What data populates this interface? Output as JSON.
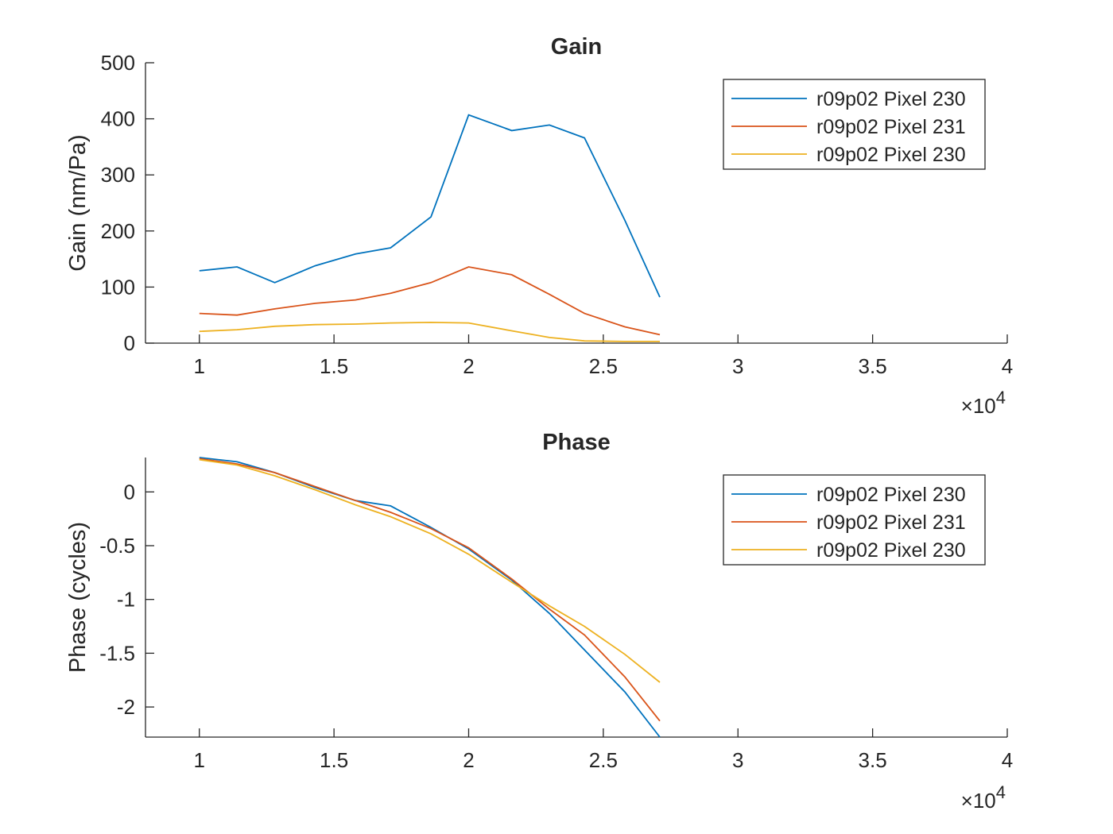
{
  "chart_data": [
    {
      "type": "line",
      "title": "Gain",
      "xlabel": "",
      "ylabel": "Gain (nm/Pa)",
      "xlim": [
        8000,
        40000
      ],
      "ylim": [
        0,
        500
      ],
      "x_ticks": [
        10000,
        15000,
        20000,
        25000,
        30000,
        35000,
        40000
      ],
      "x_tick_labels": [
        "1",
        "1.5",
        "2",
        "2.5",
        "3",
        "3.5",
        "4"
      ],
      "x_exponent_label": "×10",
      "x_exponent_power": "4",
      "y_ticks": [
        0,
        100,
        200,
        300,
        400,
        500
      ],
      "y_tick_labels": [
        "0",
        "100",
        "200",
        "300",
        "400",
        "500"
      ],
      "legend_position": "top-right",
      "grid": false,
      "x": [
        10000,
        11400,
        12800,
        14300,
        15800,
        17100,
        18600,
        20000,
        21600,
        23000,
        24300,
        25800,
        27100
      ],
      "series": [
        {
          "name": "r09p02 Pixel 230",
          "color": "#0072bd",
          "values": [
            129,
            136,
            108,
            138,
            159,
            170,
            225,
            407,
            379,
            389,
            366,
            219,
            82
          ]
        },
        {
          "name": "r09p02 Pixel 231",
          "color": "#d95319",
          "values": [
            53,
            50,
            61,
            71,
            77,
            89,
            108,
            136,
            122,
            87,
            53,
            29,
            15
          ]
        },
        {
          "name": "r09p02 Pixel 230",
          "color": "#edb120",
          "values": [
            21,
            24,
            30,
            33,
            34,
            36,
            37,
            36,
            22,
            10,
            4,
            3,
            3
          ]
        }
      ]
    },
    {
      "type": "line",
      "title": "Phase",
      "xlabel": "",
      "ylabel": "Phase (cycles)",
      "xlim": [
        8000,
        40000
      ],
      "ylim": [
        -2.28,
        0.32
      ],
      "x_ticks": [
        10000,
        15000,
        20000,
        25000,
        30000,
        35000,
        40000
      ],
      "x_tick_labels": [
        "1",
        "1.5",
        "2",
        "2.5",
        "3",
        "3.5",
        "4"
      ],
      "x_exponent_label": "×10",
      "x_exponent_power": "4",
      "y_ticks": [
        0,
        -0.5,
        -1,
        -1.5,
        -2
      ],
      "y_tick_labels": [
        "0",
        "-0.5",
        "-1",
        "-1.5",
        "-2"
      ],
      "legend_position": "top-right",
      "grid": false,
      "x": [
        10000,
        11400,
        12800,
        14300,
        15800,
        17100,
        18600,
        20000,
        21600,
        23000,
        24300,
        25800,
        27100
      ],
      "series": [
        {
          "name": "r09p02 Pixel 230",
          "color": "#0072bd",
          "values": [
            0.32,
            0.28,
            0.18,
            0.04,
            -0.08,
            -0.13,
            -0.33,
            -0.53,
            -0.82,
            -1.13,
            -1.47,
            -1.86,
            -2.28
          ]
        },
        {
          "name": "r09p02 Pixel 231",
          "color": "#d95319",
          "values": [
            0.31,
            0.26,
            0.18,
            0.05,
            -0.08,
            -0.19,
            -0.34,
            -0.52,
            -0.81,
            -1.09,
            -1.33,
            -1.72,
            -2.13
          ]
        },
        {
          "name": "r09p02 Pixel 230",
          "color": "#edb120",
          "values": [
            0.3,
            0.25,
            0.15,
            0.02,
            -0.12,
            -0.23,
            -0.39,
            -0.58,
            -0.84,
            -1.06,
            -1.25,
            -1.51,
            -1.77
          ]
        }
      ]
    }
  ]
}
